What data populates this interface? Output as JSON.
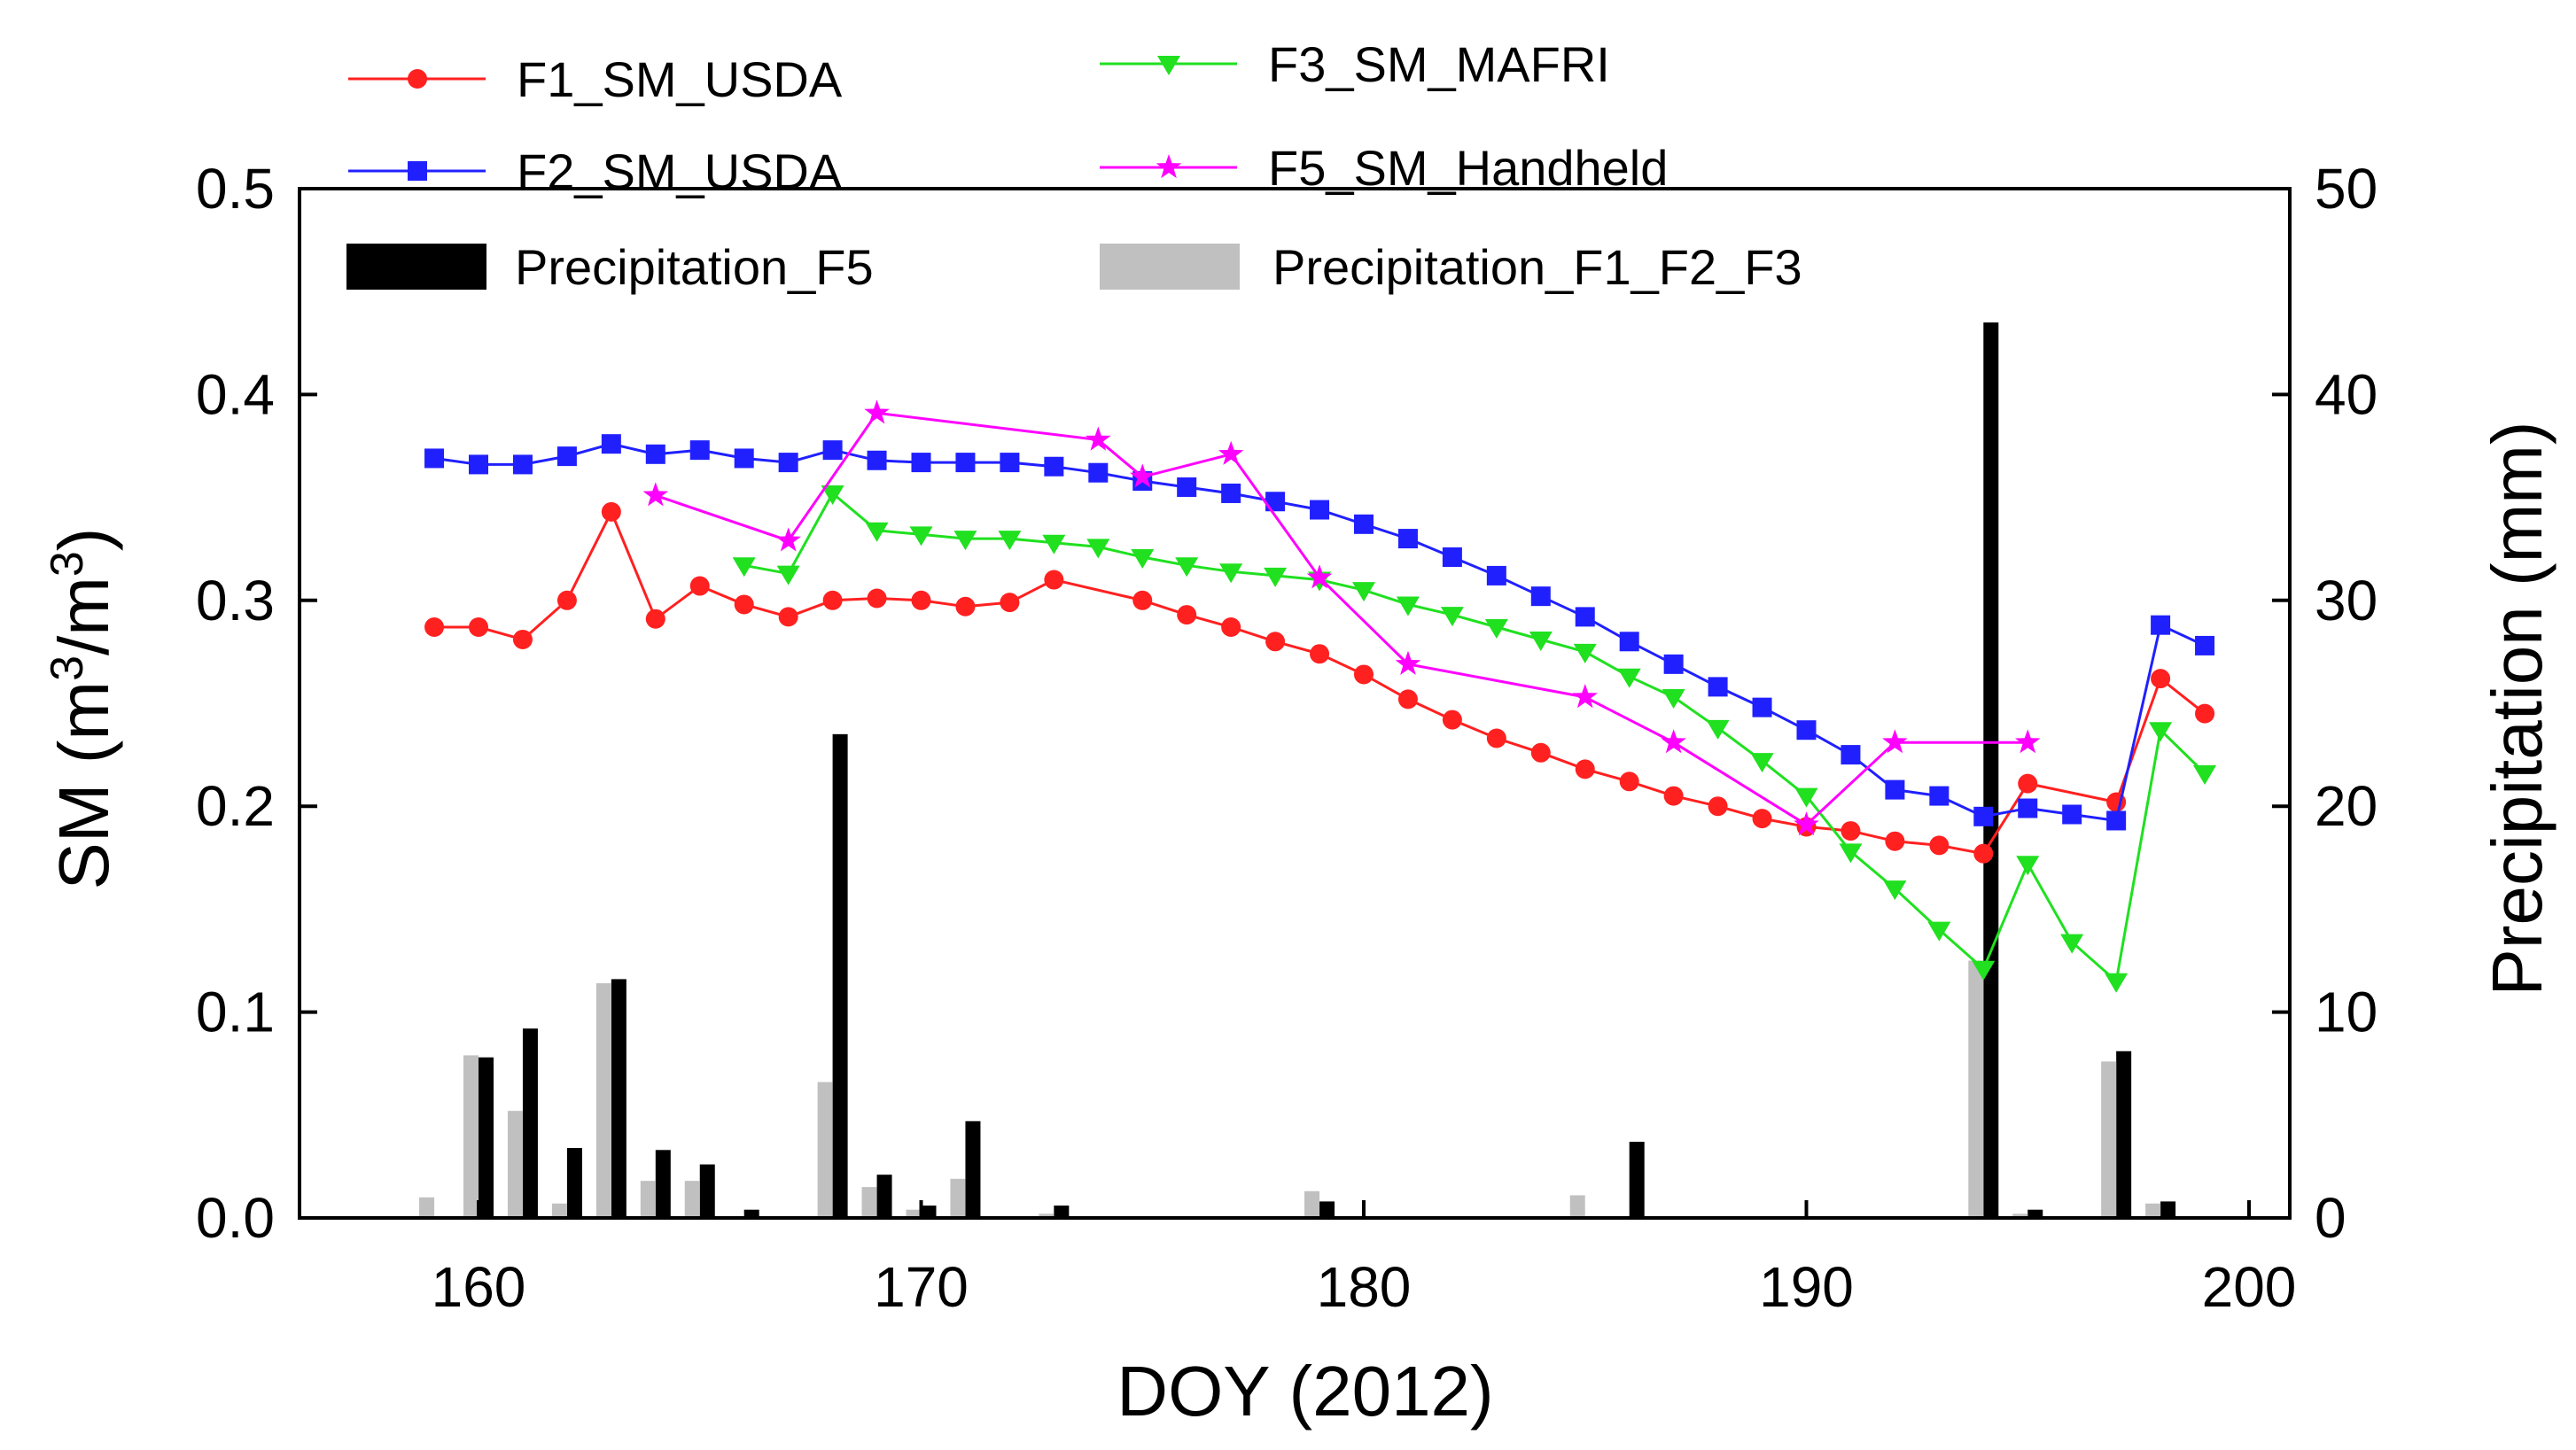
{
  "chart_data": {
    "type": "line",
    "xlabel": "DOY (2012)",
    "ylabel_left": "SM (m³/m³)",
    "ylabel_left_parts": [
      "SM (m",
      "3",
      "/m",
      "3",
      ")"
    ],
    "ylabel_right": "Precipitation (mm)",
    "xlim": [
      155,
      200
    ],
    "ylim_left": [
      0.0,
      0.5
    ],
    "ylim_right": [
      0,
      50
    ],
    "x_ticks": [
      160,
      170,
      180,
      190,
      200
    ],
    "y_left_ticks": [
      0.0,
      0.1,
      0.2,
      0.3,
      0.4,
      0.5
    ],
    "y_left_tick_labels": [
      "0.0",
      "0.1",
      "0.2",
      "0.3",
      "0.4",
      "0.5"
    ],
    "y_right_ticks": [
      0,
      10,
      20,
      30,
      40,
      50
    ],
    "grid": false,
    "legend_position": "top",
    "series": [
      {
        "name": "F1_SM_USDA",
        "color": "#ff2020",
        "marker": "circle",
        "axis": "left",
        "x": [
          159,
          160,
          161,
          162,
          163,
          164,
          165,
          166,
          167,
          168,
          169,
          170,
          171,
          172,
          173,
          175,
          176,
          177,
          178,
          179,
          180,
          181,
          182,
          183,
          184,
          185,
          186,
          187,
          188,
          189,
          190,
          191,
          192,
          193,
          194,
          195,
          197,
          198,
          199
        ],
        "values": [
          0.287,
          0.287,
          0.281,
          0.3,
          0.343,
          0.291,
          0.307,
          0.298,
          0.292,
          0.3,
          0.301,
          0.3,
          0.297,
          0.299,
          0.31,
          0.3,
          0.293,
          0.287,
          0.28,
          0.274,
          0.264,
          0.252,
          0.242,
          0.233,
          0.226,
          0.218,
          0.212,
          0.205,
          0.2,
          0.194,
          0.19,
          0.188,
          0.183,
          0.181,
          0.177,
          0.211,
          0.202,
          0.262,
          0.245
        ]
      },
      {
        "name": "F2_SM_USDA",
        "color": "#2020ff",
        "marker": "square",
        "axis": "left",
        "x": [
          159,
          160,
          161,
          162,
          163,
          164,
          165,
          166,
          167,
          168,
          169,
          170,
          171,
          172,
          173,
          174,
          175,
          176,
          177,
          178,
          179,
          180,
          181,
          182,
          183,
          184,
          185,
          186,
          187,
          188,
          189,
          190,
          191,
          192,
          193,
          194,
          195,
          196,
          197,
          198,
          199
        ],
        "values": [
          0.369,
          0.366,
          0.366,
          0.37,
          0.376,
          0.371,
          0.373,
          0.369,
          0.367,
          0.373,
          0.368,
          0.367,
          0.367,
          0.367,
          0.365,
          0.362,
          0.358,
          0.355,
          0.352,
          0.348,
          0.344,
          0.337,
          0.33,
          0.321,
          0.312,
          0.302,
          0.292,
          0.28,
          0.269,
          0.258,
          0.248,
          0.237,
          0.225,
          0.208,
          0.205,
          0.195,
          0.199,
          0.196,
          0.193,
          0.288,
          0.278
        ]
      },
      {
        "name": "F3_SM_MAFRI",
        "color": "#20e020",
        "marker": "triangle-down",
        "axis": "left",
        "x": [
          166,
          167,
          168,
          169,
          170,
          171,
          172,
          173,
          174,
          175,
          176,
          177,
          178,
          179,
          180,
          181,
          182,
          183,
          184,
          185,
          186,
          187,
          188,
          189,
          190,
          191,
          192,
          193,
          194,
          195,
          196,
          197,
          198,
          199
        ],
        "values": [
          0.317,
          0.313,
          0.352,
          0.334,
          0.332,
          0.33,
          0.33,
          0.328,
          0.326,
          0.321,
          0.317,
          0.314,
          0.312,
          0.31,
          0.305,
          0.298,
          0.293,
          0.287,
          0.281,
          0.275,
          0.263,
          0.253,
          0.238,
          0.222,
          0.205,
          0.178,
          0.16,
          0.14,
          0.121,
          0.172,
          0.134,
          0.115,
          0.237,
          0.216
        ]
      },
      {
        "name": "F5_SM_Handheld",
        "color": "#ff00ff",
        "marker": "star",
        "axis": "left",
        "x": [
          164,
          167,
          169,
          174,
          175,
          177,
          179,
          181,
          185,
          187,
          190,
          192,
          195
        ],
        "values": [
          0.351,
          0.329,
          0.391,
          0.378,
          0.36,
          0.371,
          0.311,
          0.269,
          0.253,
          0.231,
          0.191,
          0.231,
          0.231
        ]
      }
    ],
    "bar_series": [
      {
        "name": "Precipitation_F5",
        "color": "#000000",
        "axis": "right",
        "x": [
          160,
          161,
          162,
          163,
          164,
          165,
          166,
          168,
          169,
          170,
          171,
          173,
          179,
          186,
          194,
          195,
          197,
          198
        ],
        "values": [
          7.8,
          9.2,
          3.4,
          11.6,
          3.3,
          2.6,
          0.4,
          23.5,
          2.1,
          0.6,
          4.7,
          0.6,
          0.8,
          3.7,
          43.5,
          0.4,
          8.1,
          0.8
        ]
      },
      {
        "name": "Precipitation_F1_F2_F3",
        "color": "#c0c0c0",
        "axis": "right",
        "x": [
          159,
          160,
          161,
          162,
          163,
          164,
          165,
          168,
          169,
          170,
          171,
          173,
          179,
          185,
          194,
          195,
          197,
          198
        ],
        "values": [
          1.0,
          7.9,
          5.2,
          0.7,
          11.4,
          1.8,
          1.8,
          6.6,
          1.5,
          0.4,
          1.9,
          0.2,
          1.3,
          1.1,
          12.5,
          0.2,
          7.6,
          0.7
        ]
      }
    ]
  }
}
